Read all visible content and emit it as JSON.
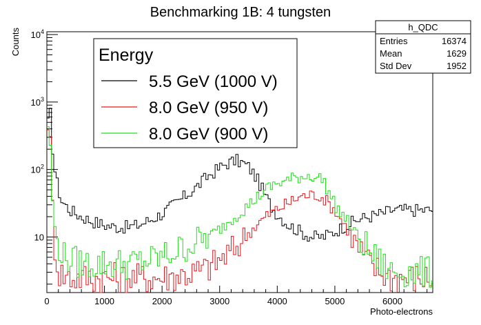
{
  "chart_data": {
    "type": "line",
    "title": "Benchmarking 1B: 4 tungsten",
    "xlabel": "Photo-electrons",
    "ylabel": "Counts",
    "xlim": [
      0,
      6700
    ],
    "ylim": [
      1.5,
      11000
    ],
    "yscale": "log",
    "x_ticks": [
      0,
      1000,
      2000,
      3000,
      4000,
      5000,
      6000
    ],
    "x_tick_labels": [
      "0",
      "1000",
      "2000",
      "3000",
      "4000",
      "5000",
      "6000"
    ],
    "y_ticks": [
      10,
      100,
      1000,
      10000
    ],
    "y_tick_labels": [
      {
        "base": "10",
        "exp": ""
      },
      {
        "base": "10",
        "exp": "2"
      },
      {
        "base": "10",
        "exp": "3"
      },
      {
        "base": "10",
        "exp": "4"
      }
    ],
    "legend": {
      "title": "Energy",
      "placement": "top-left",
      "entries": [
        "5.5 GeV (1000 V)",
        "8.0 GeV (950 V)",
        "8.0 GeV (900 V)"
      ]
    },
    "stats_box": {
      "name": "h_QDC",
      "rows": [
        {
          "label": "Entries",
          "value": "16374"
        },
        {
          "label": "Mean",
          "value": "1629"
        },
        {
          "label": "Std Dev",
          "value": "1952"
        }
      ]
    },
    "series": [
      {
        "name": "5.5 GeV (1000 V)",
        "color": "#000000",
        "anchors": [
          [
            0,
            300
          ],
          [
            50,
            1000
          ],
          [
            80,
            300
          ],
          [
            150,
            80
          ],
          [
            250,
            35
          ],
          [
            400,
            25
          ],
          [
            600,
            20
          ],
          [
            800,
            17
          ],
          [
            1000,
            15
          ],
          [
            1200,
            14
          ],
          [
            1400,
            14
          ],
          [
            1600,
            15
          ],
          [
            1800,
            18
          ],
          [
            2000,
            22
          ],
          [
            2200,
            30
          ],
          [
            2400,
            40
          ],
          [
            2600,
            55
          ],
          [
            2800,
            80
          ],
          [
            3000,
            105
          ],
          [
            3100,
            120
          ],
          [
            3200,
            130
          ],
          [
            3300,
            135
          ],
          [
            3400,
            125
          ],
          [
            3500,
            110
          ],
          [
            3600,
            85
          ],
          [
            3700,
            60
          ],
          [
            3800,
            40
          ],
          [
            3900,
            28
          ],
          [
            4000,
            22
          ],
          [
            4200,
            15
          ],
          [
            4400,
            12
          ],
          [
            4600,
            10
          ],
          [
            4800,
            10
          ],
          [
            5000,
            12
          ],
          [
            5200,
            15
          ],
          [
            5400,
            18
          ],
          [
            5600,
            20
          ],
          [
            5800,
            22
          ],
          [
            6000,
            25
          ],
          [
            6200,
            25
          ],
          [
            6400,
            25
          ],
          [
            6600,
            25
          ],
          [
            6700,
            25
          ]
        ]
      },
      {
        "name": "8.0 GeV (950 V)",
        "color": "#e8161b",
        "anchors": [
          [
            0,
            300
          ],
          [
            40,
            700
          ],
          [
            80,
            100
          ],
          [
            120,
            10
          ],
          [
            200,
            3
          ],
          [
            400,
            2.5
          ],
          [
            800,
            2.5
          ],
          [
            1200,
            2.5
          ],
          [
            1600,
            2.5
          ],
          [
            2000,
            2.5
          ],
          [
            2400,
            2.8
          ],
          [
            2600,
            3
          ],
          [
            2800,
            3.5
          ],
          [
            3000,
            4.5
          ],
          [
            3200,
            6
          ],
          [
            3400,
            9
          ],
          [
            3600,
            14
          ],
          [
            3800,
            20
          ],
          [
            4000,
            26
          ],
          [
            4200,
            32
          ],
          [
            4400,
            40
          ],
          [
            4600,
            42
          ],
          [
            4700,
            42
          ],
          [
            4800,
            38
          ],
          [
            5000,
            25
          ],
          [
            5200,
            14
          ],
          [
            5400,
            7
          ],
          [
            5600,
            4
          ],
          [
            5800,
            3
          ],
          [
            6000,
            2.5
          ],
          [
            6300,
            2.5
          ],
          [
            6700,
            2.5
          ]
        ]
      },
      {
        "name": "8.0 GeV (900 V)",
        "color": "#1ee018",
        "anchors": [
          [
            0,
            300
          ],
          [
            40,
            700
          ],
          [
            80,
            60
          ],
          [
            150,
            10
          ],
          [
            300,
            5
          ],
          [
            600,
            4
          ],
          [
            1000,
            4
          ],
          [
            1400,
            4
          ],
          [
            1800,
            4.5
          ],
          [
            2000,
            5
          ],
          [
            2400,
            7
          ],
          [
            2800,
            10
          ],
          [
            3000,
            13
          ],
          [
            3200,
            18
          ],
          [
            3400,
            25
          ],
          [
            3600,
            35
          ],
          [
            3800,
            50
          ],
          [
            4000,
            62
          ],
          [
            4200,
            70
          ],
          [
            4400,
            78
          ],
          [
            4600,
            82
          ],
          [
            4800,
            70
          ],
          [
            4900,
            45
          ],
          [
            5000,
            30
          ],
          [
            5200,
            18
          ],
          [
            5400,
            10
          ],
          [
            5600,
            6
          ],
          [
            5800,
            4
          ],
          [
            6000,
            3
          ],
          [
            6400,
            3
          ],
          [
            6700,
            3
          ]
        ]
      }
    ]
  }
}
